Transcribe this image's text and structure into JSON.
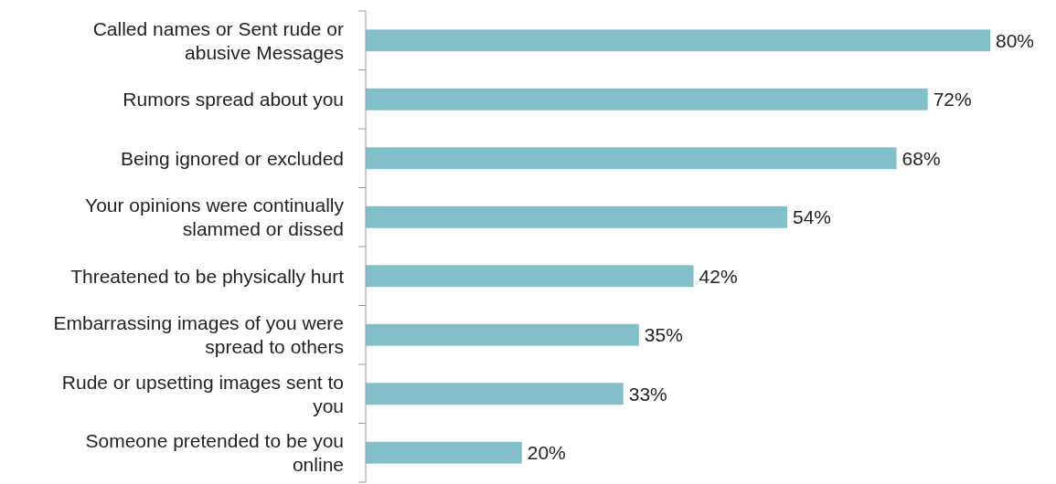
{
  "chart_data": {
    "type": "bar",
    "orientation": "horizontal",
    "categories": [
      "Called names or Sent rude or abusive Messages",
      "Rumors spread about you",
      "Being ignored or excluded",
      "Your opinions were continually slammed or dissed",
      "Threatened to be physically hurt",
      "Embarrassing images of you were spread to others",
      "Rude or upsetting images sent to you",
      "Someone pretended to be you online"
    ],
    "values": [
      80,
      72,
      68,
      54,
      42,
      35,
      33,
      20
    ],
    "value_labels": [
      "80%",
      "72%",
      "68%",
      "54%",
      "42%",
      "35%",
      "33%",
      "20%"
    ],
    "color": "#82bfc8"
  }
}
